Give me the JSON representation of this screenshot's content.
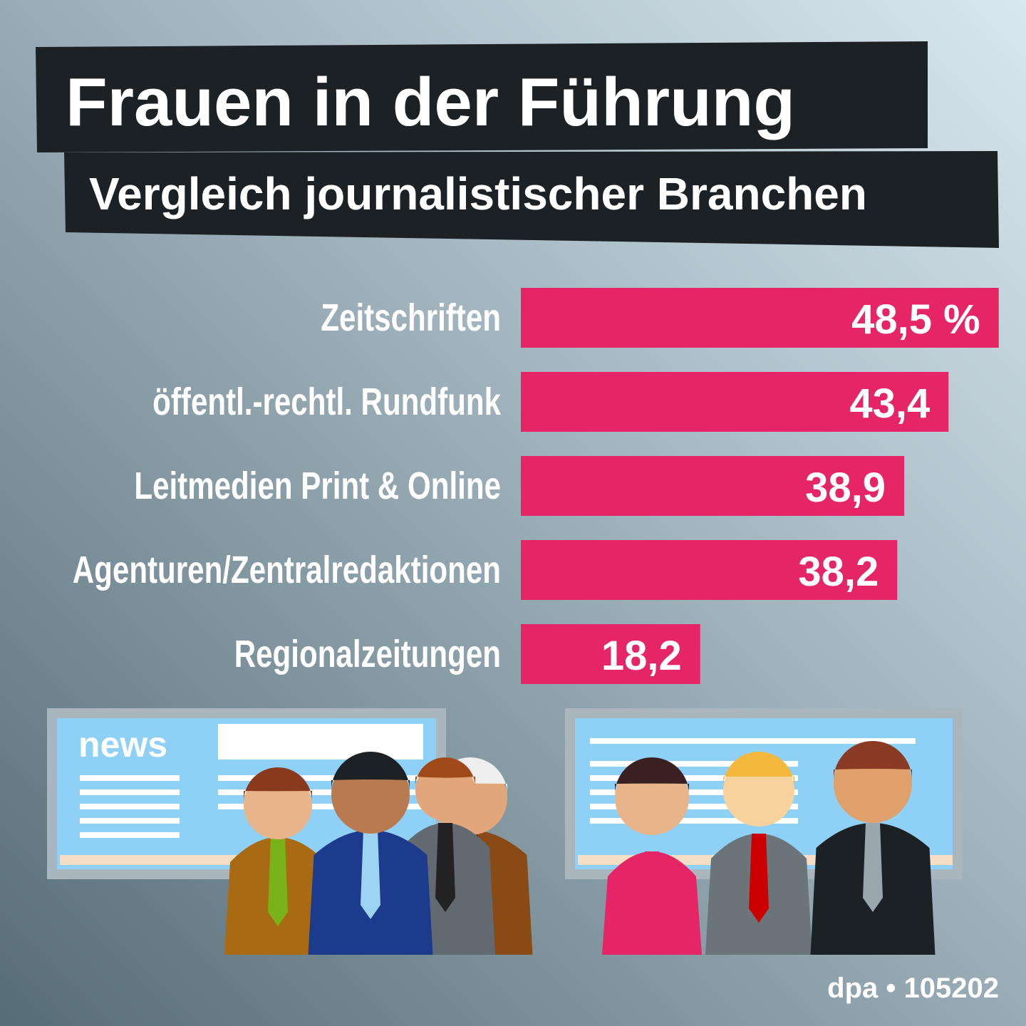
{
  "chart_data": {
    "type": "bar",
    "orientation": "horizontal",
    "title": "Frauen in der Führung",
    "subtitle": "Vergleich journalistischer Branchen",
    "categories": [
      "Zeitschriften",
      "öffentl.-rechtl. Rundfunk",
      "Leitmedien Print & Online",
      "Agenturen/Zentralredaktionen",
      "Regionalzeitungen"
    ],
    "values": [
      48.5,
      43.4,
      38.9,
      38.2,
      18.2
    ],
    "value_labels": [
      "48,5 %",
      "43,4",
      "38,9",
      "38,2",
      "18,2"
    ],
    "color": "#e52565"
  },
  "illustration": {
    "screen_label": "news"
  },
  "source": "dpa • 105202"
}
